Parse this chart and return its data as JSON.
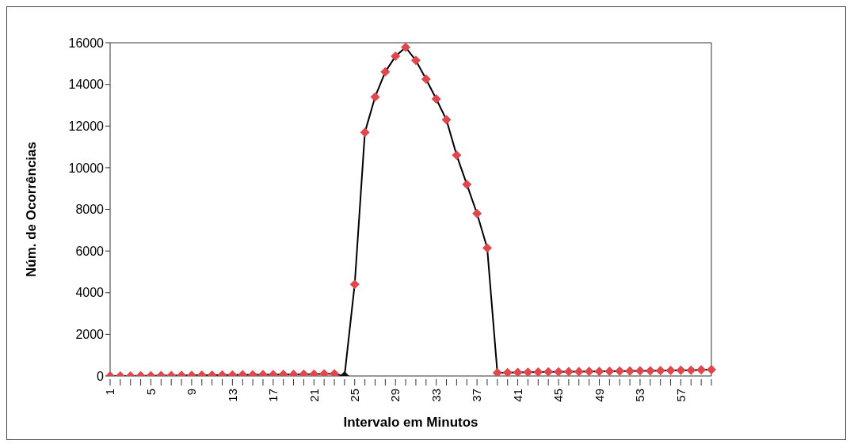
{
  "chart_data": {
    "type": "line",
    "xlabel": "Intervalo em Minutos",
    "ylabel": "Núm. de Ocorrências",
    "categories": [
      "1",
      null,
      null,
      null,
      "5",
      null,
      null,
      null,
      "9",
      null,
      null,
      null,
      "13",
      null,
      null,
      null,
      "17",
      null,
      null,
      null,
      "21",
      null,
      null,
      null,
      "25",
      null,
      null,
      null,
      "29",
      null,
      null,
      null,
      "33",
      null,
      null,
      null,
      "37",
      null,
      null,
      null,
      "41",
      null,
      null,
      null,
      "45",
      null,
      null,
      null,
      "49",
      null,
      null,
      null,
      "53",
      null,
      null,
      null,
      "57",
      null,
      null,
      null
    ],
    "series": [
      {
        "color": "#000000",
        "values": [
          0,
          0,
          0,
          10,
          10,
          20,
          20,
          30,
          30,
          40,
          40,
          50,
          50,
          60,
          60,
          70,
          70,
          80,
          80,
          90,
          90,
          100,
          100,
          0,
          4400,
          11700,
          13400,
          14600,
          15350,
          15780,
          15150,
          14250,
          13300,
          12300,
          10600,
          9200,
          7800,
          6150,
          150,
          160,
          170,
          180,
          190,
          200,
          200,
          210,
          210,
          220,
          220,
          230,
          240,
          240,
          250,
          250,
          260,
          270,
          280,
          280,
          290,
          300
        ],
        "colors": [
          "#e0474c",
          "#e0474c",
          "#e0474c",
          "#e0474c",
          "#e0474c",
          "#e0474c",
          "#e0474c",
          "#e0474c",
          "#e0474c",
          "#e0474c",
          "#e0474c",
          "#e0474c",
          "#e0474c",
          "#e0474c",
          "#e0474c",
          "#e0474c",
          "#e0474c",
          "#e0474c",
          "#e0474c",
          "#e0474c",
          "#e0474c",
          "#e0474c",
          "#e0474c",
          "#111111",
          "#e0474c",
          "#e0474c",
          "#e0474c",
          "#e0474c",
          "#e0474c",
          "#e0474c",
          "#e0474c",
          "#e0474c",
          "#e0474c",
          "#e0474c",
          "#e0474c",
          "#e0474c",
          "#e0474c",
          "#e0474c",
          "#e0474c",
          "#e0474c",
          "#e0474c",
          "#e0474c",
          "#e0474c",
          "#e0474c",
          "#e0474c",
          "#e0474c",
          "#e0474c",
          "#e0474c",
          "#e0474c",
          "#e0474c",
          "#e0474c",
          "#e0474c",
          "#e0474c",
          "#e0474c",
          "#e0474c",
          "#e0474c",
          "#e0474c",
          "#e0474c",
          "#e0474c",
          "#e0474c"
        ]
      }
    ],
    "ylim": [
      0,
      16000
    ],
    "yticks": [
      0,
      2000,
      4000,
      6000,
      8000,
      10000,
      12000,
      14000,
      16000
    ],
    "marker": "diamond",
    "line_style": "solid"
  }
}
